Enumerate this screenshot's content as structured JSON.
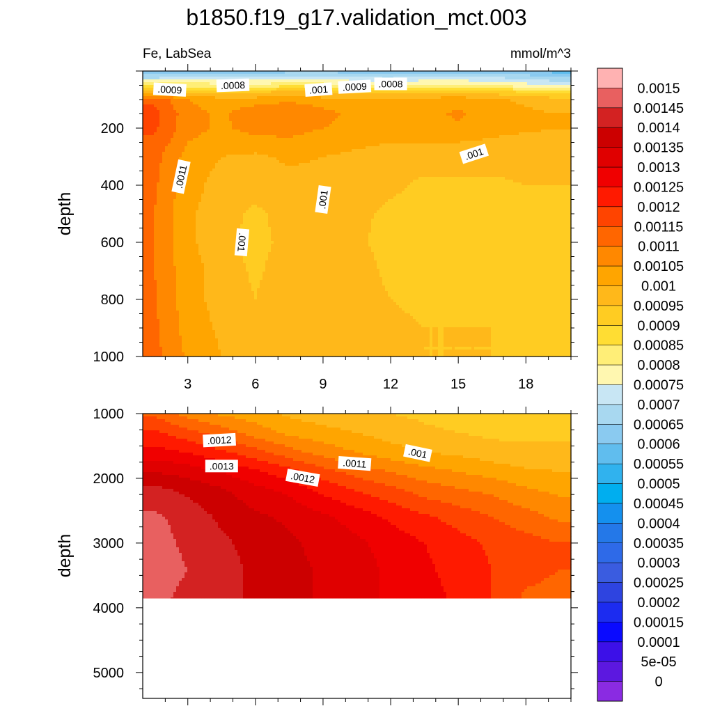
{
  "title": "b1850.f19_g17.validation_mct.003",
  "variable_label": "Fe, LabSea",
  "units_label": "mmol/m^3",
  "chart_data": [
    {
      "type": "contour",
      "panel": "upper",
      "ylabel": "depth",
      "xlim": [
        1,
        20
      ],
      "ylim": [
        1000,
        0
      ],
      "xticks": [
        "3",
        "6",
        "9",
        "12",
        "15",
        "18"
      ],
      "yticks": [
        "200",
        "400",
        "600",
        "800",
        "1000"
      ],
      "x_tick_values": [
        3,
        6,
        9,
        12,
        15,
        18
      ],
      "y_tick_values": [
        200,
        400,
        600,
        800,
        1000
      ],
      "x": [
        1.5,
        3,
        4.5,
        6,
        7.5,
        9,
        10.5,
        12,
        13.5,
        15,
        16.5,
        18,
        19.5
      ],
      "depth": [
        0,
        25,
        50,
        75,
        100,
        150,
        200,
        250,
        300,
        400,
        500,
        600,
        700,
        800,
        900,
        1000
      ],
      "z": [
        [
          0.0006,
          0.00062,
          0.00063,
          0.00062,
          0.00063,
          0.00064,
          0.00062,
          0.00061,
          0.00062,
          0.00063,
          0.00062,
          0.0006,
          0.00058
        ],
        [
          0.0007,
          0.00072,
          0.00073,
          0.00072,
          0.00074,
          0.00074,
          0.00071,
          0.0007,
          0.00072,
          0.00072,
          0.00071,
          0.00069,
          0.00066
        ],
        [
          0.00085,
          0.00083,
          0.00082,
          0.00081,
          0.00084,
          0.00082,
          0.0008,
          0.00079,
          0.00081,
          0.00081,
          0.0008,
          0.00077,
          0.00075
        ],
        [
          0.00098,
          0.00094,
          0.00094,
          0.00095,
          0.00097,
          0.00095,
          0.00094,
          0.00093,
          0.00094,
          0.00094,
          0.00093,
          0.0009,
          0.00088
        ],
        [
          0.00114,
          0.00105,
          0.00102,
          0.00102,
          0.00104,
          0.00102,
          0.00101,
          0.00101,
          0.00102,
          0.00103,
          0.00101,
          0.00099,
          0.00097
        ],
        [
          0.00117,
          0.00107,
          0.00104,
          0.00109,
          0.0011,
          0.00107,
          0.00103,
          0.00102,
          0.00103,
          0.00106,
          0.00102,
          0.00101,
          0.001
        ],
        [
          0.00116,
          0.00107,
          0.00104,
          0.00107,
          0.00107,
          0.00105,
          0.00103,
          0.00102,
          0.00103,
          0.00104,
          0.00102,
          0.00101,
          0.001
        ],
        [
          0.00114,
          0.00105,
          0.00102,
          0.00103,
          0.00104,
          0.00102,
          0.00101,
          0.001,
          0.001,
          0.001,
          0.00099,
          0.00098,
          0.00097
        ],
        [
          0.00112,
          0.00103,
          0.001,
          0.00099,
          0.00101,
          0.001,
          0.00099,
          0.00098,
          0.00097,
          0.00097,
          0.00097,
          0.00097,
          0.00096
        ],
        [
          0.00111,
          0.00102,
          0.00098,
          0.00097,
          0.00098,
          0.00098,
          0.00097,
          0.00096,
          0.00094,
          0.00094,
          0.00094,
          0.00095,
          0.00095
        ],
        [
          0.0011,
          0.00101,
          0.00097,
          0.00094,
          0.00097,
          0.00098,
          0.00096,
          0.00094,
          0.00093,
          0.00093,
          0.00094,
          0.00093,
          0.00094
        ],
        [
          0.0011,
          0.00101,
          0.00097,
          0.00093,
          0.00097,
          0.00098,
          0.00096,
          0.00093,
          0.00093,
          0.00093,
          0.00093,
          0.00092,
          0.00094
        ],
        [
          0.0011,
          0.00102,
          0.00098,
          0.00094,
          0.00098,
          0.00099,
          0.00097,
          0.00094,
          0.00093,
          0.00094,
          0.00094,
          0.00091,
          0.00094
        ],
        [
          0.00111,
          0.00102,
          0.00098,
          0.00095,
          0.00099,
          0.00099,
          0.00097,
          0.00095,
          0.00094,
          0.00094,
          0.00094,
          0.00091,
          0.00094
        ],
        [
          0.00111,
          0.00103,
          0.00099,
          0.00097,
          0.00099,
          0.00099,
          0.00098,
          0.00096,
          0.00095,
          0.00095,
          0.00095,
          0.00092,
          0.00094
        ],
        [
          0.00112,
          0.00104,
          0.001,
          0.00098,
          0.00099,
          0.00099,
          0.00098,
          0.00096,
          0.00095,
          0.00095,
          0.00095,
          0.00093,
          0.00094
        ]
      ],
      "contour_labels": [
        {
          "text": ".0009",
          "x": 2.2,
          "depth": 65,
          "angle": 3
        },
        {
          "text": ".0008",
          "x": 5.0,
          "depth": 50,
          "angle": -2
        },
        {
          "text": ".001",
          "x": 8.8,
          "depth": 65,
          "angle": -4
        },
        {
          "text": ".0009",
          "x": 10.4,
          "depth": 55,
          "angle": -3
        },
        {
          "text": ".0008",
          "x": 12.0,
          "depth": 45,
          "angle": 0
        },
        {
          "text": ".0011",
          "x": 2.7,
          "depth": 370,
          "angle": -78
        },
        {
          "text": ".001",
          "x": 9.0,
          "depth": 450,
          "angle": -82
        },
        {
          "text": ".001",
          "x": 5.4,
          "depth": 600,
          "angle": 95
        },
        {
          "text": ".001",
          "x": 15.7,
          "depth": 290,
          "angle": -18
        }
      ]
    },
    {
      "type": "contour",
      "panel": "lower",
      "ylabel": "depth",
      "xlim": [
        1,
        20
      ],
      "ylim": [
        5400,
        1000
      ],
      "yticks": [
        "1000",
        "2000",
        "3000",
        "4000",
        "5000"
      ],
      "y_tick_values": [
        1000,
        2000,
        3000,
        4000,
        5000
      ],
      "missing_below_depth": 3850,
      "x": [
        1.5,
        3,
        4.5,
        6,
        7.5,
        9,
        10.5,
        12,
        13.5,
        15,
        16.5,
        18,
        19.5
      ],
      "depth": [
        1000,
        1300,
        1600,
        1900,
        2200,
        2600,
        3000,
        3400,
        3850
      ],
      "z": [
        [
          0.00114,
          0.00108,
          0.00104,
          0.00102,
          0.00099,
          0.00097,
          0.00096,
          0.00095,
          0.00094,
          0.00093,
          0.00093,
          0.00093,
          0.00093
        ],
        [
          0.00121,
          0.00117,
          0.00113,
          0.00108,
          0.00104,
          0.00102,
          0.001,
          0.00098,
          0.00096,
          0.00095,
          0.00094,
          0.00094,
          0.00094
        ],
        [
          0.00127,
          0.00125,
          0.00121,
          0.00117,
          0.00112,
          0.00108,
          0.00105,
          0.00102,
          0.001,
          0.00099,
          0.00097,
          0.00096,
          0.00096
        ],
        [
          0.00135,
          0.00133,
          0.0013,
          0.00126,
          0.00122,
          0.00117,
          0.00113,
          0.0011,
          0.00107,
          0.00105,
          0.00103,
          0.00101,
          0.001
        ],
        [
          0.00142,
          0.00139,
          0.00136,
          0.00132,
          0.00129,
          0.00124,
          0.0012,
          0.00117,
          0.00113,
          0.00111,
          0.00109,
          0.00106,
          0.00104
        ],
        [
          0.00146,
          0.00143,
          0.00139,
          0.00136,
          0.00134,
          0.00131,
          0.00128,
          0.00124,
          0.00121,
          0.00118,
          0.00115,
          0.00112,
          0.00109
        ],
        [
          0.00147,
          0.00144,
          0.00141,
          0.00138,
          0.00136,
          0.00133,
          0.00131,
          0.00128,
          0.00125,
          0.00122,
          0.00119,
          0.00117,
          0.00115
        ],
        [
          0.00147,
          0.00145,
          0.00142,
          0.00139,
          0.00137,
          0.00134,
          0.00132,
          0.00129,
          0.00126,
          0.00123,
          0.0012,
          0.00117,
          0.00115
        ],
        [
          0.00146,
          0.00144,
          0.00142,
          0.00139,
          0.00137,
          0.00134,
          0.00132,
          0.00129,
          0.00127,
          0.00124,
          0.0012,
          0.00114,
          0.00113
        ]
      ],
      "contour_labels": [
        {
          "text": ".0012",
          "x": 4.4,
          "depth": 1410,
          "angle": -3
        },
        {
          "text": ".0013",
          "x": 4.5,
          "depth": 1810,
          "angle": 0
        },
        {
          "text": ".0012",
          "x": 8.1,
          "depth": 1990,
          "angle": 10
        },
        {
          "text": ".0011",
          "x": 10.4,
          "depth": 1770,
          "angle": 4
        },
        {
          "text": ".001",
          "x": 13.2,
          "depth": 1610,
          "angle": 12
        }
      ]
    }
  ],
  "colorbar": {
    "labels": [
      "0.0015",
      "0.00145",
      "0.0014",
      "0.00135",
      "0.0013",
      "0.00125",
      "0.0012",
      "0.00115",
      "0.0011",
      "0.00105",
      "0.001",
      "0.00095",
      "0.0009",
      "0.00085",
      "0.0008",
      "0.00075",
      "0.0007",
      "0.00065",
      "0.0006",
      "0.00055",
      "0.0005",
      "0.00045",
      "0.0004",
      "0.00035",
      "0.0003",
      "0.00025",
      "0.0002",
      "0.00015",
      "0.0001",
      "5e-05",
      "0"
    ],
    "colors": [
      "#FFB2B2",
      "#E86060",
      "#D32222",
      "#CC0000",
      "#E00000",
      "#F00000",
      "#FF1A00",
      "#FF4400",
      "#FF6600",
      "#FF8800",
      "#FFA500",
      "#FFB81A",
      "#FFCC22",
      "#FFDD33",
      "#FFEE77",
      "#FFF7B0",
      "#C8E6F4",
      "#A8D8F0",
      "#8ACAF0",
      "#60BDEE",
      "#30B2EE",
      "#00AEEF",
      "#1490EE",
      "#2478E8",
      "#2E6AE8",
      "#3A5CE0",
      "#2E44E0",
      "#1C2CF0",
      "#0A0AFF",
      "#3C10E8",
      "#5C18E0",
      "#8A2BE2"
    ]
  }
}
